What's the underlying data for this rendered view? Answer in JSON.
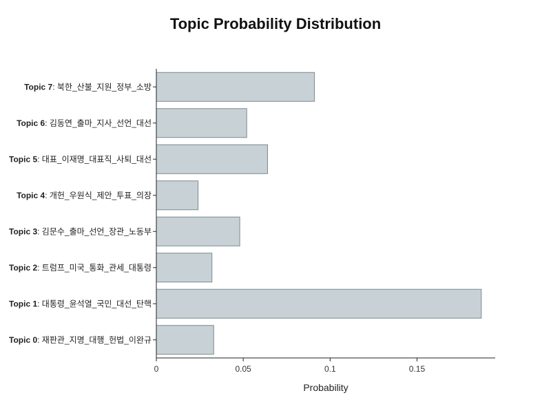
{
  "chart_data": {
    "type": "bar",
    "orientation": "horizontal",
    "title": "Topic Probability Distribution",
    "xlabel": "Probability",
    "ylabel": "",
    "xlim": [
      0,
      0.195
    ],
    "xticks": [
      0,
      0.05,
      0.1,
      0.15
    ],
    "xtick_labels": [
      "0",
      "0.05",
      "0.1",
      "0.15"
    ],
    "bar_color": "#c8d1d6",
    "bar_edge_color": "#7a8a8f",
    "categories": [
      {
        "topic": "Topic 7",
        "terms": ": 북한_산불_지원_정부_소방"
      },
      {
        "topic": "Topic 6",
        "terms": ": 김동연_출마_지사_선언_대선"
      },
      {
        "topic": "Topic 5",
        "terms": ": 대표_이재명_대표직_사퇴_대선"
      },
      {
        "topic": "Topic 4",
        "terms": ": 개헌_우원식_제안_투표_의장"
      },
      {
        "topic": "Topic 3",
        "terms": ": 김문수_출마_선언_장관_노동부"
      },
      {
        "topic": "Topic 2",
        "terms": ": 트럼프_미국_통화_관세_대통령"
      },
      {
        "topic": "Topic 1",
        "terms": ": 대통령_윤석열_국민_대선_탄핵"
      },
      {
        "topic": "Topic 0",
        "terms": ": 재판관_지명_대행_헌법_이완규"
      }
    ],
    "values": [
      0.091,
      0.052,
      0.064,
      0.024,
      0.048,
      0.032,
      0.187,
      0.033
    ]
  }
}
